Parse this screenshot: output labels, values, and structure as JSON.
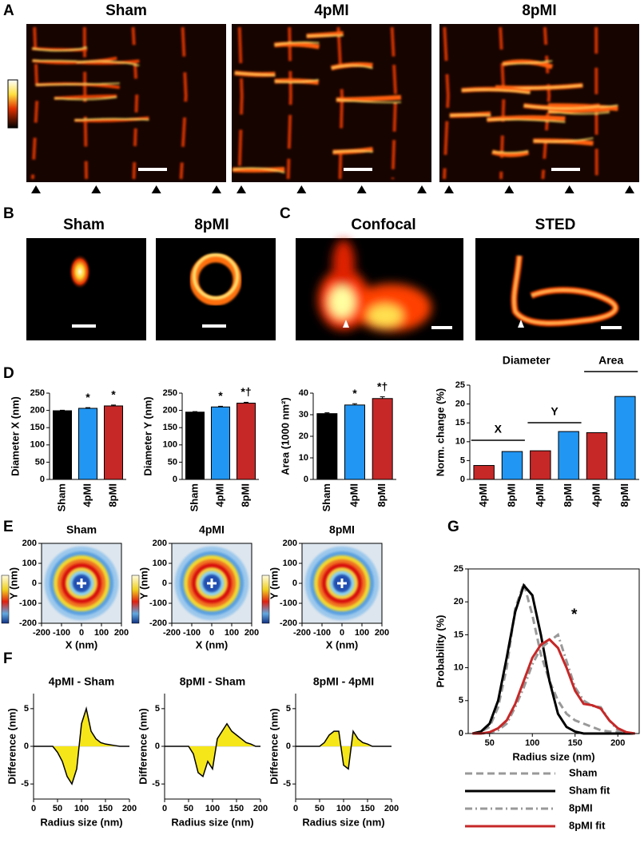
{
  "panel_labels": [
    "A",
    "B",
    "C",
    "D",
    "E",
    "F",
    "G"
  ],
  "images": {
    "A": [
      "Sham",
      "4pMI",
      "8pMI"
    ],
    "B": [
      "Sham",
      "8pMI"
    ],
    "C": [
      "Confocal",
      "STED"
    ]
  },
  "chart_data": [
    {
      "type": "bar",
      "ylabel": "Diameter X (nm)",
      "categories": [
        "Sham",
        "4pMI",
        "8pMI"
      ],
      "values": [
        199,
        206,
        213
      ],
      "errors": [
        1.5,
        2,
        2.5
      ],
      "colors": [
        "#000000",
        "#2196f3",
        "#c62828"
      ],
      "ylim": [
        0,
        250
      ],
      "yticks": [
        0,
        50,
        100,
        150,
        200,
        250
      ],
      "annotations": [
        {
          "category": "4pMI",
          "text": "*"
        },
        {
          "category": "8pMI",
          "text": "*"
        }
      ]
    },
    {
      "type": "bar",
      "ylabel": "Diameter Y (nm)",
      "categories": [
        "Sham",
        "4pMI",
        "8pMI"
      ],
      "values": [
        195,
        210,
        221
      ],
      "errors": [
        1.5,
        2,
        2.5
      ],
      "colors": [
        "#000000",
        "#2196f3",
        "#c62828"
      ],
      "ylim": [
        0,
        250
      ],
      "yticks": [
        0,
        50,
        100,
        150,
        200,
        250
      ],
      "annotations": [
        {
          "category": "4pMI",
          "text": "*"
        },
        {
          "category": "8pMI",
          "text": "*†"
        }
      ]
    },
    {
      "type": "bar",
      "ylabel": "Area (1000 nm²)",
      "categories": [
        "Sham",
        "4pMI",
        "8pMI"
      ],
      "values": [
        30.5,
        34.5,
        37.5
      ],
      "errors": [
        0.4,
        0.6,
        0.8
      ],
      "colors": [
        "#000000",
        "#2196f3",
        "#c62828"
      ],
      "ylim": [
        0,
        40
      ],
      "yticks": [
        0,
        10,
        20,
        30,
        40
      ],
      "annotations": [
        {
          "category": "4pMI",
          "text": "*"
        },
        {
          "category": "8pMI",
          "text": "*†"
        }
      ]
    },
    {
      "type": "bar",
      "ylabel": "Norm. change (%)",
      "categories": [
        "4pMI",
        "8pMI",
        "4pMI",
        "8pMI",
        "4pMI",
        "8pMI"
      ],
      "values": [
        3.7,
        7.4,
        7.6,
        12.7,
        12.4,
        22
      ],
      "colors": [
        "#c62828",
        "#2196f3",
        "#c62828",
        "#2196f3",
        "#c62828",
        "#2196f3"
      ],
      "ylim": [
        0,
        25
      ],
      "yticks": [
        0,
        5,
        10,
        15,
        20,
        25
      ],
      "group_labels": [
        "Diameter",
        "X",
        "Y",
        "Area"
      ]
    },
    {
      "type": "density",
      "title": "Sham",
      "xlabel": "X (nm)",
      "ylabel": "Y (nm)",
      "xlim": [
        -200,
        200
      ],
      "ylim": [
        -200,
        200
      ],
      "xticks": [
        -200,
        -100,
        0,
        100,
        200
      ],
      "yticks": [
        -200,
        -100,
        0,
        100,
        200
      ]
    },
    {
      "type": "density",
      "title": "4pMI",
      "xlabel": "X (nm)",
      "ylabel": "Y (nm)",
      "xlim": [
        -200,
        200
      ],
      "ylim": [
        -200,
        200
      ],
      "xticks": [
        -200,
        -100,
        0,
        100,
        200
      ],
      "yticks": [
        -200,
        -100,
        0,
        100,
        200
      ]
    },
    {
      "type": "density",
      "title": "8pMI",
      "xlabel": "X (nm)",
      "ylabel": "Y (nm)",
      "xlim": [
        -200,
        200
      ],
      "ylim": [
        -200,
        200
      ],
      "xticks": [
        -200,
        -100,
        0,
        100,
        200
      ],
      "yticks": [
        -200,
        -100,
        0,
        100,
        200
      ]
    },
    {
      "type": "line",
      "title": "4pMI - Sham",
      "xlabel": "Radius size (nm)",
      "ylabel": "Difference (nm)",
      "color": "#000000",
      "fill_color": "#f5e61a",
      "x": [
        0,
        10,
        20,
        30,
        40,
        50,
        60,
        70,
        80,
        90,
        100,
        110,
        120,
        130,
        140,
        150,
        160,
        170,
        180,
        190,
        200
      ],
      "values": [
        0,
        0,
        0,
        0,
        0,
        -0.8,
        -2,
        -4,
        -5,
        -3,
        3,
        5,
        2,
        1,
        0.5,
        0.3,
        0.2,
        0.1,
        0,
        0,
        0
      ],
      "xlim": [
        0,
        200
      ],
      "ylim": [
        -7,
        7
      ],
      "xticks": [
        0,
        50,
        100,
        150,
        200
      ],
      "yticks": [
        -5,
        0,
        5
      ]
    },
    {
      "type": "line",
      "title": "8pMI - Sham",
      "xlabel": "Radius size (nm)",
      "ylabel": "Difference (nm)",
      "color": "#000000",
      "fill_color": "#f5e61a",
      "x": [
        0,
        10,
        20,
        30,
        40,
        50,
        60,
        70,
        80,
        90,
        100,
        110,
        120,
        130,
        140,
        150,
        160,
        170,
        180,
        190,
        200
      ],
      "values": [
        0,
        0,
        0,
        0,
        0,
        0,
        -1,
        -3.5,
        -4,
        -2,
        -3,
        1,
        2,
        3,
        2,
        1.5,
        1,
        0.5,
        0.3,
        0,
        0
      ],
      "xlim": [
        0,
        200
      ],
      "ylim": [
        -7,
        7
      ],
      "xticks": [
        0,
        50,
        100,
        150,
        200
      ],
      "yticks": [
        -5,
        0,
        5
      ]
    },
    {
      "type": "line",
      "title": "8pMI - 4pMI",
      "xlabel": "Radius size (nm)",
      "ylabel": "Difference (nm)",
      "color": "#000000",
      "fill_color": "#f5e61a",
      "x": [
        0,
        10,
        20,
        30,
        40,
        50,
        60,
        70,
        80,
        90,
        100,
        110,
        120,
        130,
        140,
        150,
        160,
        170,
        180,
        190,
        200
      ],
      "values": [
        0,
        0,
        0,
        0,
        0,
        0,
        0.5,
        1.5,
        2,
        2,
        -2.5,
        -3,
        2,
        1,
        0.5,
        0.3,
        0,
        0,
        0,
        0,
        0
      ],
      "xlim": [
        0,
        200
      ],
      "ylim": [
        -7,
        7
      ],
      "xticks": [
        0,
        50,
        100,
        150,
        200
      ],
      "yticks": [
        -5,
        0,
        5
      ]
    },
    {
      "type": "line",
      "xlabel": "Radius size (nm)",
      "ylabel": "Probability (%)",
      "annotation": "*",
      "x": [
        30,
        40,
        50,
        60,
        70,
        80,
        90,
        100,
        110,
        120,
        130,
        140,
        150,
        160,
        170,
        180,
        190,
        200,
        210,
        220
      ],
      "series": [
        {
          "name": "Sham",
          "color": "#999999",
          "style": "dashed",
          "values": [
            0,
            0.3,
            1,
            4,
            10,
            19,
            22.8,
            18,
            12,
            8,
            5,
            3,
            2,
            1.5,
            1,
            0.5,
            0.3,
            0.2,
            0,
            0
          ]
        },
        {
          "name": "Sham fit",
          "color": "#000000",
          "style": "solid",
          "values": [
            0,
            0.3,
            1.5,
            5,
            11.5,
            18.5,
            22.5,
            21,
            15,
            8,
            3,
            1,
            0.3,
            0,
            0,
            0,
            0,
            0,
            0,
            0
          ]
        },
        {
          "name": "8pMI",
          "color": "#999999",
          "style": "dashdot",
          "values": [
            0,
            0,
            0.1,
            0.5,
            1.5,
            4,
            7,
            10.5,
            13,
            14,
            15,
            11,
            7,
            5,
            4.2,
            4,
            2,
            0.5,
            0.2,
            0
          ]
        },
        {
          "name": "8pMI fit",
          "color": "#c62828",
          "style": "solid",
          "values": [
            0,
            0,
            0.2,
            0.8,
            2,
            4.5,
            8,
            11.5,
            13.5,
            14.3,
            13,
            10,
            6.5,
            4.5,
            4.3,
            3.8,
            2,
            0.8,
            0.2,
            0
          ]
        }
      ],
      "xlim": [
        25,
        225
      ],
      "ylim": [
        0,
        25
      ],
      "xticks": [
        50,
        100,
        150,
        200
      ],
      "yticks": [
        0,
        5,
        10,
        15,
        20,
        25
      ]
    }
  ]
}
